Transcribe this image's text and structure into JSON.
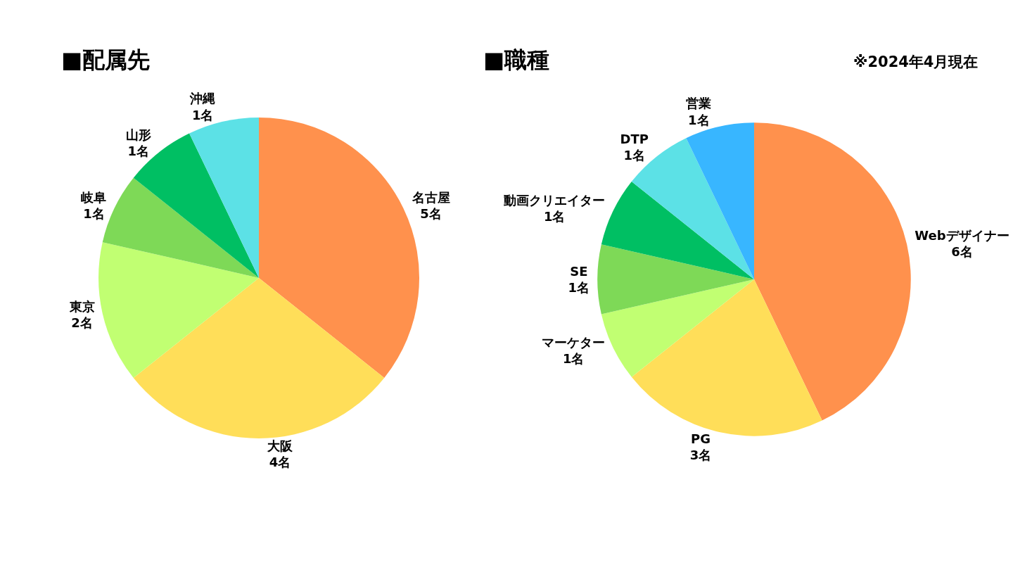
{
  "chart_data": [
    {
      "type": "pie",
      "title": "■配属先",
      "categories": [
        "名古屋",
        "大阪",
        "東京",
        "岐阜",
        "山形",
        "沖縄"
      ],
      "values": [
        5,
        4,
        2,
        1,
        1,
        1
      ],
      "value_labels": [
        "5名",
        "4名",
        "2名",
        "1名",
        "1名",
        "1名"
      ],
      "colors": [
        "#ff914d",
        "#ffde59",
        "#c1ff72",
        "#7ed957",
        "#00bf63",
        "#5ce1e6"
      ],
      "legend": false
    },
    {
      "type": "pie",
      "title": "■職種",
      "categories": [
        "Webデザイナー",
        "PG",
        "マーケター",
        "SE",
        "動画クリエイター",
        "DTP",
        "営業"
      ],
      "values": [
        6,
        3,
        1,
        1,
        1,
        1,
        1
      ],
      "value_labels": [
        "6名",
        "3名",
        "1名",
        "1名",
        "1名",
        "1名",
        "1名"
      ],
      "colors": [
        "#ff914d",
        "#ffde59",
        "#c1ff72",
        "#7ed957",
        "#00bf63",
        "#5ce1e6",
        "#38b6ff"
      ],
      "legend": false,
      "annotations": [
        "※2024年4月現在"
      ]
    }
  ]
}
